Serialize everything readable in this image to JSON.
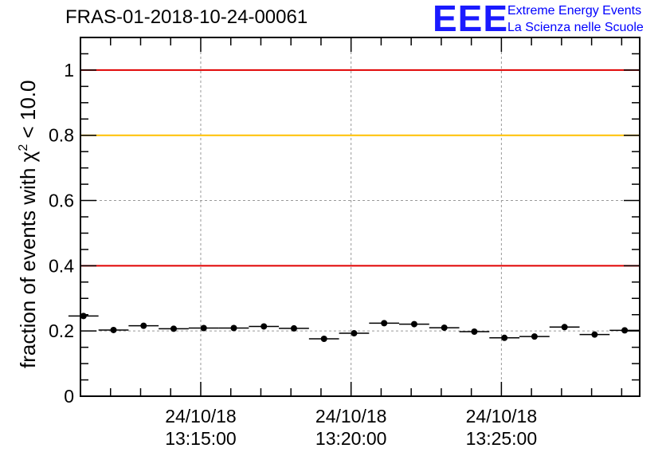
{
  "header": {
    "title": "FRAS-01-2018-10-24-00061",
    "logo_mark": "EEE",
    "logo_line1": "Extreme Energy Events",
    "logo_line2": "La Scienza nelle Scuole"
  },
  "chart_data": {
    "type": "scatter",
    "title": "FRAS-01-2018-10-24-00061",
    "ylabel_prefix": "fraction of events with χ",
    "ylabel_sup": "2",
    "ylabel_suffix": " < 10.0",
    "xlabel": "",
    "ylim": [
      0,
      1.1
    ],
    "yticks": [
      0,
      0.2,
      0.4,
      0.6,
      0.8,
      1
    ],
    "ytick_labels": [
      "0",
      "0.2",
      "0.4",
      "0.6",
      "0.8",
      "1"
    ],
    "xlim": [
      0,
      18.6
    ],
    "xticks": [
      {
        "x": 4.0,
        "date": "24/10/18",
        "time": "13:15:00"
      },
      {
        "x": 9.0,
        "date": "24/10/18",
        "time": "13:20:00"
      },
      {
        "x": 14.0,
        "date": "24/10/18",
        "time": "13:25:00"
      }
    ],
    "x_bin_width": 1.0,
    "x_minor_step": 1.0,
    "grid": true,
    "reference_lines": [
      {
        "y": 1.0,
        "color": "#e00000"
      },
      {
        "y": 0.8,
        "color": "#ffc000"
      },
      {
        "y": 0.4,
        "color": "#e00000"
      }
    ],
    "points": [
      {
        "x": 0.1,
        "y": 0.246
      },
      {
        "x": 1.1,
        "y": 0.203
      },
      {
        "x": 2.1,
        "y": 0.216
      },
      {
        "x": 3.1,
        "y": 0.207
      },
      {
        "x": 4.1,
        "y": 0.209
      },
      {
        "x": 5.1,
        "y": 0.209
      },
      {
        "x": 6.1,
        "y": 0.214
      },
      {
        "x": 7.1,
        "y": 0.208
      },
      {
        "x": 8.1,
        "y": 0.176
      },
      {
        "x": 9.1,
        "y": 0.193
      },
      {
        "x": 10.1,
        "y": 0.224
      },
      {
        "x": 11.1,
        "y": 0.221
      },
      {
        "x": 12.1,
        "y": 0.21
      },
      {
        "x": 13.1,
        "y": 0.198
      },
      {
        "x": 14.1,
        "y": 0.179
      },
      {
        "x": 15.1,
        "y": 0.183
      },
      {
        "x": 16.1,
        "y": 0.212
      },
      {
        "x": 17.1,
        "y": 0.189
      },
      {
        "x": 18.1,
        "y": 0.202
      }
    ]
  }
}
